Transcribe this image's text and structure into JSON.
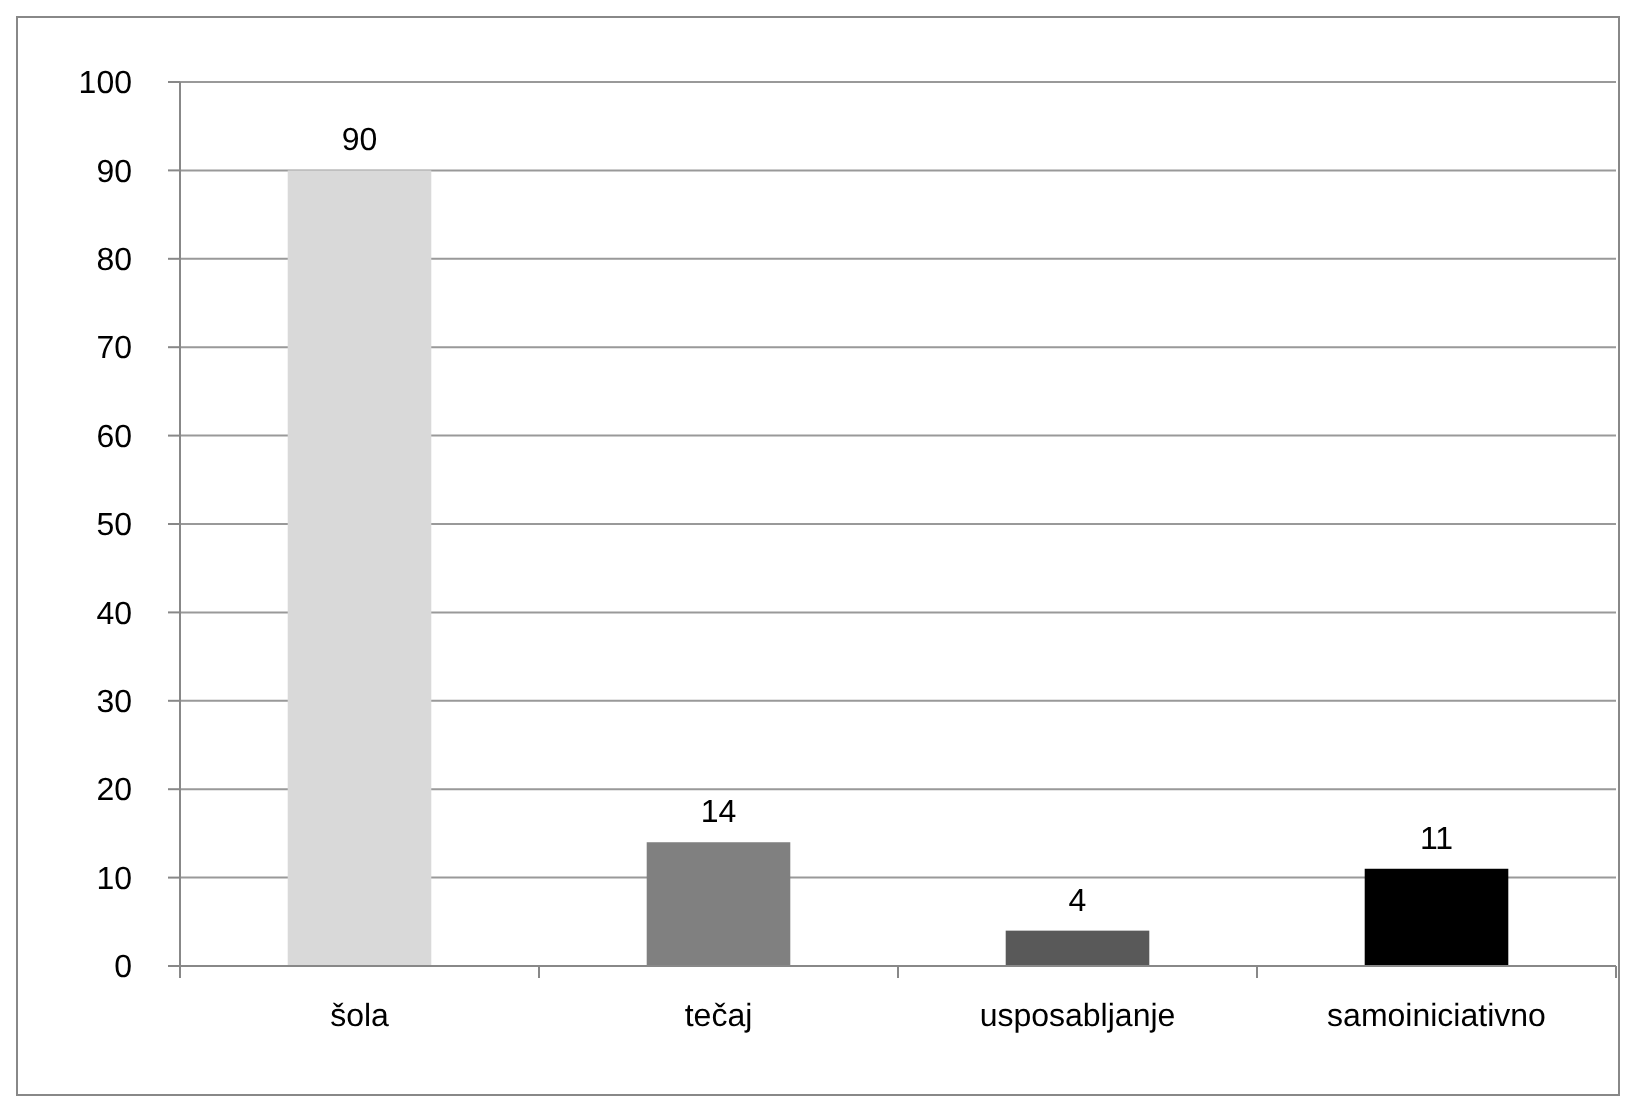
{
  "chart_data": {
    "type": "bar",
    "categories": [
      "šola",
      "tečaj",
      "usposabljanje",
      "samoiniciativno"
    ],
    "values": [
      90,
      14,
      4,
      11
    ],
    "colors": [
      "#d9d9d9",
      "#808080",
      "#595959",
      "#000000"
    ],
    "ylim": [
      0,
      100
    ],
    "yticks": [
      0,
      10,
      20,
      30,
      40,
      50,
      60,
      70,
      80,
      90,
      100
    ],
    "grid": "y",
    "data_labels": true
  }
}
